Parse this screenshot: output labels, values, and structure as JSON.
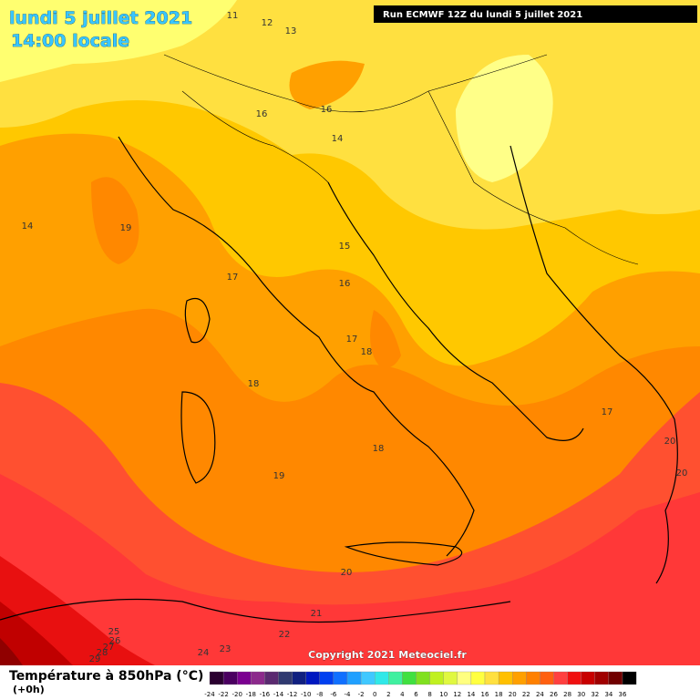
{
  "header": {
    "date": "lundi 5 juillet 2021",
    "time": "14:00 locale",
    "run": "Run ECMWF 12Z du lundi 5 juillet 2021"
  },
  "map": {
    "contour_labels": [
      "11",
      "12",
      "13",
      "16",
      "16",
      "14",
      "14",
      "19",
      "17",
      "15",
      "16",
      "17",
      "18",
      "18",
      "17",
      "18",
      "19",
      "20",
      "20",
      "20",
      "21",
      "22",
      "23",
      "24",
      "25",
      "26",
      "27",
      "28",
      "29"
    ],
    "copyright": "Copyright 2021 Meteociel.fr"
  },
  "legend": {
    "title": "Température à 850hPa (°C)",
    "subtitle": "(+0h)",
    "steps": [
      {
        "label": "-24",
        "color": "#2a0030"
      },
      {
        "label": "-22",
        "color": "#4a0060"
      },
      {
        "label": "-20",
        "color": "#7a0090"
      },
      {
        "label": "-18",
        "color": "#8c2a8c"
      },
      {
        "label": "-16",
        "color": "#5a2a70"
      },
      {
        "label": "-14",
        "color": "#303a70"
      },
      {
        "label": "-12",
        "color": "#102080"
      },
      {
        "label": "-10",
        "color": "#0018c0"
      },
      {
        "label": "-8",
        "color": "#0040f0"
      },
      {
        "label": "-6",
        "color": "#1070ff"
      },
      {
        "label": "-4",
        "color": "#20a0ff"
      },
      {
        "label": "-2",
        "color": "#40c8ff"
      },
      {
        "label": "0",
        "color": "#30e8e8"
      },
      {
        "label": "2",
        "color": "#40f0a0"
      },
      {
        "label": "4",
        "color": "#40e040"
      },
      {
        "label": "6",
        "color": "#80e020"
      },
      {
        "label": "8",
        "color": "#c0f020"
      },
      {
        "label": "10",
        "color": "#e0f840"
      },
      {
        "label": "12",
        "color": "#ffff80"
      },
      {
        "label": "14",
        "color": "#ffff40"
      },
      {
        "label": "16",
        "color": "#ffe040"
      },
      {
        "label": "18",
        "color": "#ffc000"
      },
      {
        "label": "20",
        "color": "#ffa000"
      },
      {
        "label": "22",
        "color": "#ff8000"
      },
      {
        "label": "24",
        "color": "#ff6010"
      },
      {
        "label": "26",
        "color": "#ff4040"
      },
      {
        "label": "28",
        "color": "#f01010"
      },
      {
        "label": "30",
        "color": "#c80000"
      },
      {
        "label": "32",
        "color": "#a00000"
      },
      {
        "label": "34",
        "color": "#700000"
      },
      {
        "label": "36",
        "color": "#000000"
      }
    ]
  }
}
